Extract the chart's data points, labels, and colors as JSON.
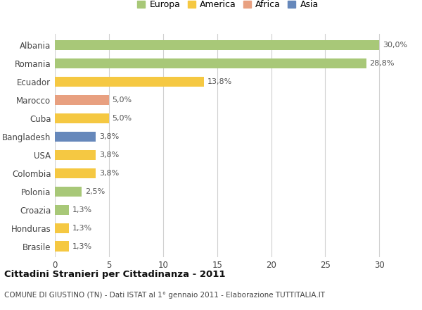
{
  "countries": [
    "Brasile",
    "Honduras",
    "Croazia",
    "Polonia",
    "Colombia",
    "USA",
    "Bangladesh",
    "Cuba",
    "Marocco",
    "Ecuador",
    "Romania",
    "Albania"
  ],
  "values": [
    1.3,
    1.3,
    1.3,
    2.5,
    3.8,
    3.8,
    3.8,
    5.0,
    5.0,
    13.8,
    28.8,
    30.0
  ],
  "labels": [
    "1,3%",
    "1,3%",
    "1,3%",
    "2,5%",
    "3,8%",
    "3,8%",
    "3,8%",
    "5,0%",
    "5,0%",
    "13,8%",
    "28,8%",
    "30,0%"
  ],
  "colors": [
    "#f5c842",
    "#f5c842",
    "#a8c878",
    "#a8c878",
    "#f5c842",
    "#f5c842",
    "#6688bb",
    "#f5c842",
    "#e8a080",
    "#f5c842",
    "#a8c878",
    "#a8c878"
  ],
  "legend_labels": [
    "Europa",
    "America",
    "Africa",
    "Asia"
  ],
  "legend_colors": [
    "#a8c878",
    "#f5c842",
    "#e8a080",
    "#6688bb"
  ],
  "title": "Cittadini Stranieri per Cittadinanza - 2011",
  "subtitle": "COMUNE DI GIUSTINO (TN) - Dati ISTAT al 1° gennaio 2011 - Elaborazione TUTTITALIA.IT",
  "xlim": [
    0,
    32
  ],
  "xticks": [
    0,
    5,
    10,
    15,
    20,
    25,
    30
  ],
  "background_color": "#ffffff",
  "grid_color": "#d0d0d0",
  "bar_height": 0.55
}
